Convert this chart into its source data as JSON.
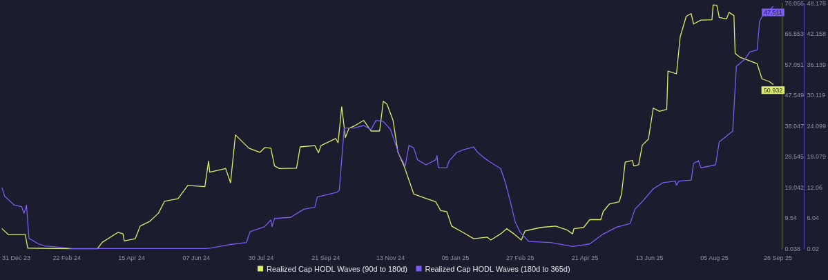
{
  "chart_data": {
    "type": "line",
    "legend": "bottom",
    "marker": "none",
    "line_style": "solid",
    "xlim": [
      "2023-12-31",
      "2025-09-26"
    ],
    "xticks": [
      {
        "value": "2023-12-31",
        "label": "31 Dec 23"
      },
      {
        "value": "2024-02-22",
        "label": "22 Feb 24"
      },
      {
        "value": "2024-04-15",
        "label": "15 Apr 24"
      },
      {
        "value": "2024-06-07",
        "label": "07 Jun 24"
      },
      {
        "value": "2024-07-30",
        "label": "30 Jul 24"
      },
      {
        "value": "2024-09-21",
        "label": "21 Sep 24"
      },
      {
        "value": "2024-11-13",
        "label": "13 Nov 24"
      },
      {
        "value": "2025-01-05",
        "label": "05 Jan 25"
      },
      {
        "value": "2025-02-27",
        "label": "27 Feb 25"
      },
      {
        "value": "2025-04-21",
        "label": "21 Apr 25"
      },
      {
        "value": "2025-06-13",
        "label": "13 Jun 25"
      },
      {
        "value": "2025-08-05",
        "label": "05 Aug 25"
      },
      {
        "value": "2025-09-26",
        "label": "26 Sep 25"
      }
    ],
    "ylim": [
      0.038,
      76.056
    ],
    "yticks": [
      0.038,
      9.54,
      19.042,
      28.545,
      38.047,
      47.549,
      57.051,
      66.553,
      76.056
    ],
    "y2lim": [
      0.02,
      48.178
    ],
    "y2ticks": [
      0.02,
      6.04,
      12.06,
      18.079,
      24.099,
      30.119,
      36.139,
      42.158,
      48.178
    ],
    "series": [
      {
        "name": "Realized Cap HODL Waves (90d to 180d)",
        "color": "#dcee6a",
        "x": [
          "2023-12-31",
          "2024-01-05",
          "2024-01-19",
          "2024-01-21",
          "2024-02-25",
          "2024-03-18",
          "2024-03-22",
          "2024-04-04",
          "2024-04-08",
          "2024-04-09",
          "2024-04-18",
          "2024-04-22",
          "2024-04-30",
          "2024-05-07",
          "2024-05-12",
          "2024-05-23",
          "2024-05-31",
          "2024-06-14",
          "2024-06-17",
          "2024-06-18",
          "2024-07-01",
          "2024-07-05",
          "2024-07-09",
          "2024-07-20",
          "2024-07-29",
          "2024-08-02",
          "2024-08-07",
          "2024-08-10",
          "2024-08-14",
          "2024-08-28",
          "2024-08-31",
          "2024-09-12",
          "2024-09-15",
          "2024-09-17",
          "2024-09-29",
          "2024-10-01",
          "2024-10-04",
          "2024-10-07",
          "2024-10-10",
          "2024-10-14",
          "2024-10-22",
          "2024-10-28",
          "2024-11-04",
          "2024-11-07",
          "2024-11-10",
          "2024-11-15",
          "2024-11-19",
          "2024-11-24",
          "2024-12-02",
          "2024-12-11",
          "2024-12-20",
          "2024-12-24",
          "2024-12-29",
          "2025-01-02",
          "2025-01-11",
          "2025-01-20",
          "2025-01-31",
          "2025-02-03",
          "2025-02-11",
          "2025-02-16",
          "2025-02-22",
          "2025-02-28",
          "2025-03-03",
          "2025-03-16",
          "2025-03-28",
          "2025-04-06",
          "2025-04-11",
          "2025-04-12",
          "2025-04-20",
          "2025-04-25",
          "2025-05-04",
          "2025-05-06",
          "2025-05-11",
          "2025-05-19",
          "2025-05-21",
          "2025-05-24",
          "2025-05-30",
          "2025-05-31",
          "2025-06-04",
          "2025-06-07",
          "2025-06-12",
          "2025-06-16",
          "2025-06-21",
          "2025-06-27",
          "2025-06-28",
          "2025-07-05",
          "2025-07-08",
          "2025-07-13",
          "2025-07-17",
          "2025-07-19",
          "2025-07-25",
          "2025-08-03",
          "2025-08-04",
          "2025-08-07",
          "2025-08-09",
          "2025-08-15",
          "2025-08-17",
          "2025-08-21",
          "2025-08-22",
          "2025-08-26",
          "2025-09-01",
          "2025-09-09",
          "2025-09-13",
          "2025-09-19",
          "2025-09-22"
        ],
        "values": [
          6.3,
          4.5,
          4.5,
          0.3,
          0.1,
          0.1,
          2.1,
          5.2,
          4.7,
          2.5,
          3.2,
          7.1,
          8.6,
          11.1,
          14.8,
          15.6,
          19.7,
          19.3,
          27.2,
          23.8,
          24.9,
          20.5,
          35.3,
          31.2,
          29.9,
          31.4,
          31.2,
          25.7,
          24.9,
          25.0,
          31.6,
          32.0,
          29.8,
          32.0,
          34.2,
          32.9,
          44.0,
          34.5,
          37.4,
          38.0,
          39.8,
          36.5,
          36.5,
          45.7,
          44.8,
          39.8,
          30.0,
          25.7,
          17.0,
          15.8,
          14.6,
          11.9,
          11.6,
          7.1,
          5.2,
          3.2,
          3.7,
          2.8,
          4.7,
          6.3,
          4.7,
          2.8,
          5.6,
          6.7,
          7.1,
          6.0,
          4.7,
          6.3,
          6.7,
          9.1,
          9.1,
          11.6,
          13.9,
          14.6,
          17.0,
          26.9,
          27.4,
          25.7,
          26.1,
          32.1,
          34.0,
          43.6,
          42.6,
          43.2,
          55.0,
          54.2,
          65.6,
          72.0,
          72.8,
          69.6,
          70.8,
          70.9,
          75.5,
          75.4,
          71.6,
          71.2,
          73.2,
          72.2,
          60.5,
          59.3,
          58.5,
          57.3,
          52.6,
          51.8,
          50.932
        ],
        "value_labels": [
          null,
          null,
          null,
          null,
          null,
          null,
          null,
          null,
          null,
          null,
          null,
          null,
          null,
          null,
          null,
          null,
          null,
          null,
          null,
          null,
          null,
          null,
          null,
          null,
          null,
          null,
          null,
          null,
          null,
          null,
          null,
          null,
          null,
          null,
          null,
          null,
          null,
          null,
          null,
          null,
          null,
          null,
          null,
          null,
          null,
          null,
          null,
          null,
          null,
          null,
          null,
          null,
          null,
          null,
          null,
          null,
          null,
          null,
          null,
          null,
          null,
          null,
          null,
          null,
          null,
          null,
          null,
          null,
          null,
          null,
          null,
          null,
          null,
          null,
          null,
          null,
          null,
          null,
          null,
          null,
          null,
          null,
          null,
          null,
          null,
          null,
          null,
          null,
          null,
          null,
          null,
          null,
          null,
          null,
          null,
          null,
          null,
          null,
          null,
          null,
          null,
          null,
          null,
          null,
          "50.932"
        ]
      },
      {
        "name": "Realized Cap HODL Waves (180d to 365d)",
        "color": "#7b5cf5",
        "axis": "y2",
        "x": [
          "2023-12-31",
          "2024-01-02",
          "2024-01-10",
          "2024-01-16",
          "2024-01-18",
          "2024-01-20",
          "2024-01-22",
          "2024-01-30",
          "2024-02-04",
          "2024-02-23",
          "2024-02-26",
          "2024-06-15",
          "2024-06-19",
          "2024-07-05",
          "2024-07-18",
          "2024-07-21",
          "2024-08-02",
          "2024-08-07",
          "2024-08-08",
          "2024-08-10",
          "2024-08-23",
          "2024-09-03",
          "2024-09-12",
          "2024-09-14",
          "2024-09-30",
          "2024-10-02",
          "2024-10-06",
          "2024-10-14",
          "2024-10-22",
          "2024-10-28",
          "2024-11-01",
          "2024-11-07",
          "2024-11-13",
          "2024-11-20",
          "2024-11-25",
          "2024-11-28",
          "2024-12-02",
          "2024-12-05",
          "2024-12-12",
          "2024-12-20",
          "2024-12-21",
          "2024-12-22",
          "2024-12-29",
          "2024-12-31",
          "2025-01-06",
          "2025-01-12",
          "2025-01-20",
          "2025-01-23",
          "2025-01-29",
          "2025-02-02",
          "2025-02-11",
          "2025-02-15",
          "2025-02-19",
          "2025-02-23",
          "2025-02-27",
          "2025-03-06",
          "2025-03-24",
          "2025-04-11",
          "2025-04-25",
          "2025-05-05",
          "2025-05-17",
          "2025-05-28",
          "2025-06-01",
          "2025-06-07",
          "2025-06-16",
          "2025-06-24",
          "2025-07-04",
          "2025-07-05",
          "2025-07-07",
          "2025-07-17",
          "2025-07-19",
          "2025-07-23",
          "2025-07-25",
          "2025-08-06",
          "2025-08-09",
          "2025-08-20",
          "2025-08-23",
          "2025-08-30",
          "2025-09-03",
          "2025-09-09",
          "2025-09-11",
          "2025-09-16",
          "2025-09-20",
          "2025-09-22"
        ],
        "values": [
          12.0,
          10.4,
          8.6,
          8.3,
          7.0,
          8.6,
          2.1,
          1.0,
          0.6,
          0.2,
          0.1,
          0.1,
          0.2,
          0.9,
          1.3,
          3.4,
          4.4,
          5.7,
          4.4,
          6.0,
          6.2,
          7.8,
          8.2,
          10.2,
          11.1,
          11.5,
          23.7,
          23.7,
          24.2,
          23.4,
          25.2,
          25.0,
          23.4,
          18.5,
          16.3,
          20.3,
          19.8,
          17.5,
          16.5,
          17.5,
          18.3,
          15.9,
          15.9,
          17.3,
          18.9,
          19.5,
          20.0,
          19.0,
          17.8,
          17.1,
          15.8,
          13.0,
          9.3,
          5.3,
          3.3,
          1.5,
          1.3,
          0.5,
          1.0,
          2.8,
          4.3,
          5.0,
          7.8,
          9.3,
          11.8,
          13.0,
          13.3,
          12.5,
          13.3,
          13.5,
          16.8,
          17.3,
          15.9,
          16.5,
          21.0,
          23.1,
          35.8,
          37.2,
          38.6,
          39.0,
          44.6,
          46.9,
          47.0,
          47.511
        ],
        "value_labels": [
          null,
          null,
          null,
          null,
          null,
          null,
          null,
          null,
          null,
          null,
          null,
          null,
          null,
          null,
          null,
          null,
          null,
          null,
          null,
          null,
          null,
          null,
          null,
          null,
          null,
          null,
          null,
          null,
          null,
          null,
          null,
          null,
          null,
          null,
          null,
          null,
          null,
          null,
          null,
          null,
          null,
          null,
          null,
          null,
          null,
          null,
          null,
          null,
          null,
          null,
          null,
          null,
          null,
          null,
          null,
          null,
          null,
          null,
          null,
          null,
          null,
          null,
          null,
          null,
          null,
          null,
          null,
          null,
          null,
          null,
          null,
          null,
          null,
          null,
          null,
          null,
          null,
          null,
          null,
          null,
          null,
          null,
          null,
          "47.511"
        ]
      }
    ]
  }
}
